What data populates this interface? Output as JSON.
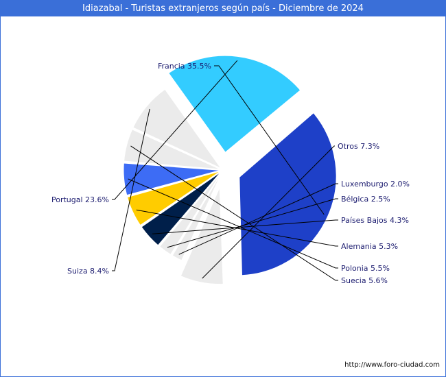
{
  "header": {
    "title": "Idiazabal - Turistas extranjeros según país - Diciembre de 2024"
  },
  "footer": {
    "url": "http://www.foro-ciudad.com"
  },
  "chart_data": {
    "type": "pie",
    "title": "Idiazabal - Turistas extranjeros según país - Diciembre de 2024",
    "slices": [
      {
        "name": "Francia",
        "value": 35.5,
        "label": "Francia 35.5%",
        "color": "#1e40c8",
        "exploded": true
      },
      {
        "name": "Otros",
        "value": 7.3,
        "label": "Otros 7.3%",
        "color": "#ebebeb",
        "exploded": true
      },
      {
        "name": "Luxemburgo",
        "value": 2.0,
        "label": "Luxemburgo 2.0%",
        "color": "#ebebeb",
        "exploded": false
      },
      {
        "name": "Bélgica",
        "value": 2.5,
        "label": "Bélgica 2.5%",
        "color": "#ebebeb",
        "exploded": false
      },
      {
        "name": "Países Bajos",
        "value": 4.3,
        "label": "Países Bajos 4.3%",
        "color": "#001f4a",
        "exploded": false
      },
      {
        "name": "Alemania",
        "value": 5.3,
        "label": "Alemania 5.3%",
        "color": "#ffcc00",
        "exploded": false
      },
      {
        "name": "Polonia",
        "value": 5.5,
        "label": "Polonia 5.5%",
        "color": "#3d6cf5",
        "exploded": false
      },
      {
        "name": "Suecia",
        "value": 5.6,
        "label": "Suecia 5.6%",
        "color": "#ebebeb",
        "exploded": false
      },
      {
        "name": "Suiza",
        "value": 8.4,
        "label": "Suiza 8.4%",
        "color": "#ebebeb",
        "exploded": false
      },
      {
        "name": "Portugal",
        "value": 23.6,
        "label": "Portugal 23.6%",
        "color": "#33ccff",
        "exploded": true
      }
    ]
  }
}
